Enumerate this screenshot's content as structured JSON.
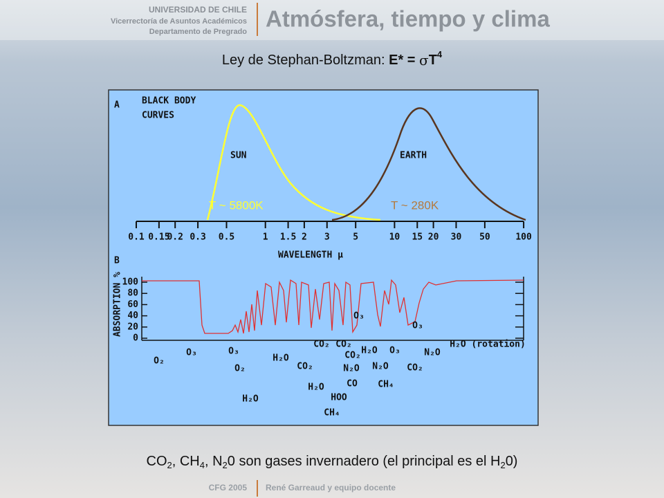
{
  "header": {
    "university": "UNIVERSIDAD DE CHILE",
    "office": "Vicerrectoría de Asuntos Académicos",
    "department": "Departamento de Pregrado",
    "course": "Atmósfera, tiempo y clima"
  },
  "title": {
    "text": "Ley de Stephan-Boltzman: ",
    "formula": "E* = ",
    "sigma": "σ",
    "variable": "T",
    "exponent": "4"
  },
  "figure": {
    "panel_a": {
      "label": "A",
      "title_lines": [
        "BLACK BODY",
        "CURVES"
      ],
      "sun": "SUN",
      "earth": "EARTH",
      "sun_temp": "T ~ 5800K",
      "earth_temp": "T ~ 280K",
      "wavelength_ticks": [
        0.1,
        0.15,
        0.2,
        0.3,
        0.5,
        1,
        1.5,
        2,
        3,
        5,
        10,
        15,
        20,
        30,
        50,
        100
      ],
      "axis_label": "WAVELENGTH μ"
    },
    "panel_b": {
      "label": "B",
      "axis_label": "ABSORPTION %",
      "yticks": [
        100,
        80,
        60,
        40,
        20,
        0
      ],
      "gases": [
        "O₂",
        "O₃",
        "O₃",
        "O₂",
        "H₂O",
        "H₂O",
        "CO₂",
        "CO₂",
        "CO₂",
        "CO₂",
        "N₂O",
        "CO",
        "H₂O",
        "HOO",
        "CH₄",
        "H₂O",
        "O₃",
        "N₂O",
        "CH₄",
        "O₃",
        "O₃",
        "N₂O",
        "CO₂",
        "H₂O (rotation)"
      ]
    }
  },
  "caption": [
    "CO",
    "2",
    ", CH",
    "4",
    ", N",
    "2",
    "0 son gases invernadero (el principal es el H",
    "2",
    "0)"
  ],
  "footer": {
    "year": "CFG 2005",
    "authors": "René Garreaud y equipo docente"
  }
}
